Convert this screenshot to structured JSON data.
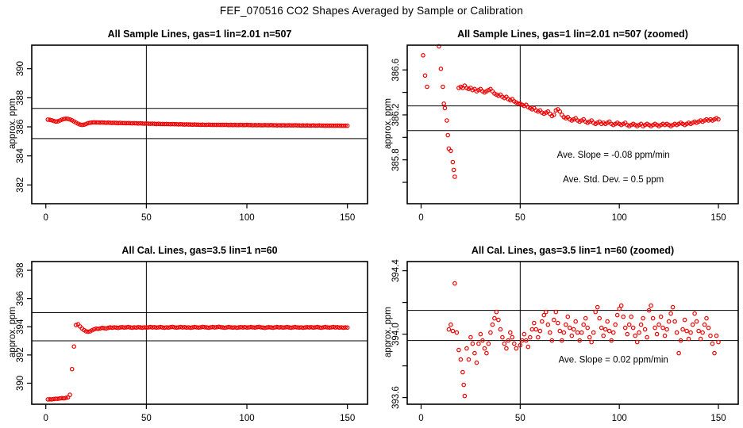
{
  "figure": {
    "title": "FEF_070516  CO2 Shapes Averaged by Sample or Calibration",
    "background": "#ffffff",
    "point_color": "#ee0000",
    "line_color": "#000000"
  },
  "chart_data": [
    {
      "type": "scatter",
      "title": "All Sample Lines, gas=1 lin=2.01 n=507",
      "ylabel": "approx. ppm",
      "xlabel": "",
      "xlim": [
        -7,
        160
      ],
      "ylim": [
        380.71,
        391.62
      ],
      "xticks": [
        0,
        50,
        100,
        150
      ],
      "yticks": [
        {
          "v": 382,
          "label": "382"
        },
        {
          "v": 384,
          "label": "384"
        },
        {
          "v": 386,
          "label": "386"
        },
        {
          "v": 388,
          "label": "388"
        },
        {
          "v": 390,
          "label": "390"
        }
      ],
      "vline_x": 50,
      "hlines": [
        387.27,
        385.19
      ],
      "grid": false,
      "annotations": [],
      "series": {
        "x_start": 1,
        "x_step": 1,
        "y": [
          386.5,
          386.48,
          386.45,
          386.4,
          386.36,
          386.38,
          386.44,
          386.5,
          386.54,
          386.56,
          386.55,
          386.51,
          386.45,
          386.37,
          386.29,
          386.22,
          386.16,
          386.13,
          386.15,
          386.2,
          386.25,
          386.28,
          386.3,
          386.31,
          386.3,
          386.3,
          386.29,
          386.3,
          386.29,
          386.28,
          386.29,
          386.28,
          386.27,
          386.28,
          386.27,
          386.26,
          386.27,
          386.26,
          386.26,
          386.25,
          386.26,
          386.25,
          386.24,
          386.25,
          386.24,
          386.23,
          386.24,
          386.23,
          386.22,
          386.23,
          386.22,
          386.21,
          386.22,
          386.21,
          386.2,
          386.21,
          386.2,
          386.2,
          386.19,
          386.2,
          386.19,
          386.18,
          386.19,
          386.18,
          386.18,
          386.17,
          386.18,
          386.17,
          386.16,
          386.17,
          386.16,
          386.16,
          386.15,
          386.16,
          386.15,
          386.15,
          386.14,
          386.15,
          386.14,
          386.14,
          386.15,
          386.14,
          386.13,
          386.14,
          386.13,
          386.14,
          386.13,
          386.13,
          386.14,
          386.13,
          386.12,
          386.13,
          386.12,
          386.13,
          386.12,
          386.12,
          386.13,
          386.12,
          386.12,
          386.13,
          386.12,
          386.12,
          386.11,
          386.12,
          386.11,
          386.12,
          386.11,
          386.11,
          386.12,
          386.11,
          386.11,
          386.12,
          386.11,
          386.11,
          386.1,
          386.11,
          386.1,
          386.11,
          386.1,
          386.1,
          386.11,
          386.1,
          386.1,
          386.11,
          386.1,
          386.1,
          386.09,
          386.1,
          386.09,
          386.1,
          386.09,
          386.09,
          386.1,
          386.09,
          386.09,
          386.1,
          386.09,
          386.09,
          386.08,
          386.09,
          386.08,
          386.09,
          386.08,
          386.08,
          386.09,
          386.08,
          386.08,
          386.07,
          386.08,
          386.08
        ]
      }
    },
    {
      "type": "scatter",
      "title": "All Sample Lines, gas=1 lin=2.01 n=507 (zoomed)",
      "ylabel": "approx. ppm",
      "xlabel": "",
      "xlim": [
        -7,
        160
      ],
      "ylim": [
        385.41,
        386.82
      ],
      "xticks": [
        0,
        50,
        100,
        150
      ],
      "yticks": [
        {
          "v": 385.6,
          "label": ""
        },
        {
          "v": 385.8,
          "label": "385.8"
        },
        {
          "v": 386.0,
          "label": ""
        },
        {
          "v": 386.2,
          "label": "386.2"
        },
        {
          "v": 386.4,
          "label": ""
        },
        {
          "v": 386.6,
          "label": "386.6"
        }
      ],
      "vline_x": 50,
      "hlines": [
        386.28,
        386.06
      ],
      "grid": false,
      "annotations": [
        {
          "text": "Ave. Slope =  -0.08  ppm/min",
          "x": 97,
          "y": 385.82
        },
        {
          "text": "Ave. Std. Dev. =  0.5  ppm",
          "x": 97,
          "y": 385.6
        }
      ],
      "scatter_points": [
        [
          1,
          386.73
        ],
        [
          2,
          386.55
        ],
        [
          3,
          386.45
        ],
        [
          9,
          386.81
        ],
        [
          10,
          386.61
        ],
        [
          11,
          386.45
        ],
        [
          11.5,
          386.3
        ],
        [
          12,
          386.26
        ],
        [
          13,
          386.15
        ],
        [
          13.5,
          386.02
        ],
        [
          14,
          385.9
        ],
        [
          15,
          385.88
        ],
        [
          16,
          385.78
        ],
        [
          16.5,
          385.71
        ],
        [
          17,
          385.65
        ]
      ],
      "series": {
        "x_start": 19,
        "x_step": 1,
        "y": [
          386.44,
          386.45,
          386.44,
          386.46,
          386.44,
          386.43,
          386.44,
          386.42,
          386.43,
          386.41,
          386.42,
          386.43,
          386.41,
          386.4,
          386.41,
          386.42,
          386.43,
          386.41,
          386.39,
          386.38,
          386.37,
          386.38,
          386.36,
          386.35,
          386.36,
          386.34,
          386.33,
          386.34,
          386.32,
          386.31,
          386.3,
          386.3,
          386.29,
          386.28,
          386.29,
          386.27,
          386.26,
          386.25,
          386.26,
          386.24,
          386.23,
          386.24,
          386.22,
          386.21,
          386.22,
          386.23,
          386.21,
          386.19,
          386.2,
          386.24,
          386.25,
          386.23,
          386.2,
          386.18,
          386.17,
          386.18,
          386.16,
          386.15,
          386.16,
          386.17,
          386.15,
          386.14,
          386.15,
          386.16,
          386.14,
          386.13,
          386.14,
          386.15,
          386.13,
          386.12,
          386.13,
          386.14,
          386.12,
          386.13,
          386.12,
          386.13,
          386.14,
          386.12,
          386.11,
          386.12,
          386.13,
          386.12,
          386.11,
          386.12,
          386.13,
          386.11,
          386.1,
          386.11,
          386.12,
          386.11,
          386.1,
          386.11,
          386.12,
          386.1,
          386.11,
          386.12,
          386.11,
          386.1,
          386.11,
          386.12,
          386.11,
          386.1,
          386.11,
          386.12,
          386.11,
          386.12,
          386.11,
          386.1,
          386.11,
          386.12,
          386.11,
          386.12,
          386.13,
          386.12,
          386.11,
          386.12,
          386.13,
          386.12,
          386.13,
          386.14,
          386.13,
          386.14,
          386.15,
          386.14,
          386.15,
          386.16,
          386.15,
          386.16,
          386.15,
          386.16,
          386.17,
          386.16
        ]
      }
    },
    {
      "type": "scatter",
      "title": "All Cal. Lines, gas=3.5 lin=1 n=60",
      "ylabel": "approx. ppm",
      "xlabel": "",
      "xlim": [
        -7,
        160
      ],
      "ylim": [
        388.51,
        398.62
      ],
      "xticks": [
        0,
        50,
        100,
        150
      ],
      "yticks": [
        {
          "v": 390,
          "label": "390"
        },
        {
          "v": 392,
          "label": "392"
        },
        {
          "v": 394,
          "label": "394"
        },
        {
          "v": 396,
          "label": "396"
        },
        {
          "v": 398,
          "label": "398"
        }
      ],
      "vline_x": 50,
      "hlines": [
        395.0,
        393.0
      ],
      "grid": false,
      "annotations": [],
      "series": {
        "x_start": 1,
        "x_step": 1,
        "y": [
          388.85,
          388.86,
          388.85,
          388.88,
          388.9,
          388.89,
          388.92,
          388.94,
          388.93,
          388.96,
          389.0,
          389.18,
          391.0,
          392.6,
          394.12,
          394.18,
          394.02,
          393.88,
          393.76,
          393.68,
          393.65,
          393.68,
          393.75,
          393.82,
          393.87,
          393.85,
          393.88,
          393.92,
          393.9,
          393.88,
          393.92,
          393.95,
          393.93,
          393.96,
          393.94,
          393.92,
          393.95,
          393.97,
          393.94,
          393.96,
          393.98,
          393.95,
          393.93,
          393.96,
          393.94,
          393.97,
          393.95,
          393.93,
          393.96,
          393.94,
          393.96,
          393.98,
          393.95,
          393.97,
          393.94,
          393.96,
          393.98,
          393.95,
          393.93,
          393.96,
          393.94,
          393.97,
          393.99,
          393.96,
          393.94,
          393.96,
          393.98,
          393.95,
          393.97,
          393.94,
          393.96,
          393.93,
          393.95,
          393.98,
          393.96,
          393.94,
          393.96,
          393.99,
          393.97,
          393.95,
          393.93,
          393.96,
          393.98,
          393.95,
          393.97,
          394.0,
          393.97,
          393.95,
          393.93,
          393.96,
          393.98,
          393.96,
          393.94,
          393.96,
          393.93,
          393.95,
          393.97,
          393.95,
          393.97,
          393.94,
          393.96,
          393.98,
          393.96,
          393.94,
          393.97,
          393.99,
          393.96,
          393.94,
          393.92,
          393.95,
          393.97,
          393.95,
          393.93,
          393.96,
          393.98,
          393.95,
          393.97,
          393.94,
          393.96,
          393.98,
          393.95,
          393.93,
          393.96,
          393.98,
          393.96,
          393.94,
          393.96,
          393.93,
          393.95,
          393.97,
          393.95,
          393.97,
          393.94,
          393.96,
          393.98,
          393.95,
          393.93,
          393.96,
          393.98,
          393.96,
          393.94,
          393.96,
          393.98,
          393.95,
          393.97,
          393.94,
          393.96,
          393.93,
          393.95,
          393.94
        ]
      }
    },
    {
      "type": "scatter",
      "title": "All Cal. Lines, gas=3.5 lin=1 n=60 (zoomed)",
      "ylabel": "approx. ppm",
      "xlabel": "",
      "xlim": [
        -7,
        160
      ],
      "ylim": [
        393.558,
        394.458
      ],
      "xticks": [
        0,
        50,
        100,
        150
      ],
      "yticks": [
        {
          "v": 393.6,
          "label": "393.6"
        },
        {
          "v": 393.8,
          "label": ""
        },
        {
          "v": 394.0,
          "label": "394.0"
        },
        {
          "v": 394.2,
          "label": ""
        },
        {
          "v": 394.4,
          "label": "394.4"
        }
      ],
      "vline_x": 50,
      "hlines": [
        394.15,
        393.96
      ],
      "grid": false,
      "annotations": [
        {
          "text": "Ave. Slope =  0.02  ppm/min",
          "x": 97,
          "y": 393.82
        }
      ],
      "scatter_points": [
        [
          14,
          394.03
        ],
        [
          15,
          394.06
        ],
        [
          16,
          394.02
        ],
        [
          17,
          394.32
        ],
        [
          18,
          394.01
        ],
        [
          19,
          393.9
        ],
        [
          20,
          393.84
        ],
        [
          21,
          393.76
        ],
        [
          21.5,
          393.68
        ],
        [
          22,
          393.61
        ],
        [
          23,
          393.91
        ],
        [
          24,
          393.84
        ],
        [
          25,
          393.98
        ],
        [
          26,
          393.94
        ],
        [
          27,
          393.88
        ],
        [
          28,
          393.82
        ],
        [
          29,
          393.94
        ],
        [
          30,
          394.0
        ],
        [
          31,
          393.96
        ],
        [
          32,
          393.91
        ],
        [
          33,
          393.88
        ],
        [
          34,
          393.94
        ],
        [
          35,
          394.01
        ],
        [
          36,
          394.06
        ],
        [
          37,
          394.1
        ],
        [
          38,
          394.14
        ],
        [
          39,
          394.09
        ],
        [
          40,
          394.03
        ],
        [
          41,
          393.98
        ],
        [
          42,
          393.94
        ],
        [
          43,
          393.91
        ],
        [
          44,
          393.96
        ],
        [
          45,
          394.01
        ],
        [
          46,
          393.98
        ],
        [
          47,
          393.94
        ],
        [
          48,
          393.91
        ],
        [
          50,
          393.93
        ],
        [
          51,
          393.96
        ],
        [
          52,
          394.0
        ],
        [
          53,
          393.96
        ],
        [
          54,
          393.92
        ],
        [
          55,
          393.98
        ],
        [
          56,
          394.03
        ],
        [
          57,
          394.07
        ],
        [
          58,
          394.03
        ],
        [
          59,
          393.98
        ],
        [
          60,
          394.02
        ],
        [
          61,
          394.08
        ],
        [
          62,
          394.12
        ],
        [
          63,
          394.14
        ],
        [
          64,
          394.06
        ],
        [
          65,
          394.01
        ],
        [
          66,
          393.96
        ],
        [
          67,
          394.09
        ],
        [
          68,
          394.14
        ],
        [
          69,
          394.07
        ],
        [
          70,
          394.02
        ],
        [
          71,
          393.96
        ],
        [
          72,
          394.01
        ],
        [
          73,
          394.06
        ],
        [
          74,
          394.11
        ],
        [
          75,
          394.04
        ],
        [
          76,
          393.99
        ],
        [
          77,
          394.03
        ],
        [
          78,
          394.08
        ],
        [
          79,
          394.01
        ],
        [
          80,
          393.96
        ],
        [
          81,
          394.01
        ],
        [
          82,
          394.06
        ],
        [
          83,
          394.1
        ],
        [
          84,
          394.04
        ],
        [
          85,
          393.98
        ],
        [
          86,
          393.95
        ],
        [
          87,
          394.01
        ],
        [
          88,
          394.14
        ],
        [
          89,
          394.17
        ],
        [
          90,
          394.1
        ],
        [
          91,
          394.04
        ],
        [
          92,
          393.99
        ],
        [
          93,
          394.03
        ],
        [
          94,
          394.08
        ],
        [
          95,
          394.02
        ],
        [
          96,
          393.96
        ],
        [
          97,
          394.01
        ],
        [
          98,
          394.06
        ],
        [
          99,
          394.12
        ],
        [
          100,
          394.16
        ],
        [
          101,
          394.18
        ],
        [
          102,
          394.11
        ],
        [
          103,
          394.04
        ],
        [
          104,
          394.0
        ],
        [
          105,
          394.06
        ],
        [
          106,
          394.11
        ],
        [
          107,
          394.04
        ],
        [
          108,
          393.99
        ],
        [
          109,
          393.95
        ],
        [
          110,
          394.01
        ],
        [
          111,
          394.06
        ],
        [
          112,
          394.1
        ],
        [
          113,
          394.03
        ],
        [
          114,
          393.98
        ],
        [
          115,
          394.15
        ],
        [
          116,
          394.18
        ],
        [
          117,
          394.1
        ],
        [
          118,
          394.04
        ],
        [
          119,
          394.0
        ],
        [
          120,
          394.06
        ],
        [
          121,
          394.11
        ],
        [
          122,
          394.04
        ],
        [
          123,
          393.99
        ],
        [
          124,
          394.03
        ],
        [
          125,
          394.08
        ],
        [
          126,
          394.13
        ],
        [
          127,
          394.17
        ],
        [
          128,
          394.08
        ],
        [
          129,
          394.01
        ],
        [
          130,
          393.88
        ],
        [
          131,
          393.96
        ],
        [
          132,
          394.03
        ],
        [
          133,
          394.09
        ],
        [
          134,
          394.02
        ],
        [
          135,
          393.97
        ],
        [
          136,
          394.01
        ],
        [
          137,
          394.06
        ],
        [
          138,
          394.13
        ],
        [
          139,
          394.08
        ],
        [
          140,
          394.02
        ],
        [
          141,
          393.97
        ],
        [
          142,
          394.01
        ],
        [
          143,
          394.06
        ],
        [
          144,
          394.1
        ],
        [
          145,
          394.04
        ],
        [
          146,
          393.99
        ],
        [
          147,
          393.94
        ],
        [
          148,
          393.88
        ],
        [
          149,
          393.99
        ],
        [
          150,
          393.95
        ]
      ]
    }
  ]
}
